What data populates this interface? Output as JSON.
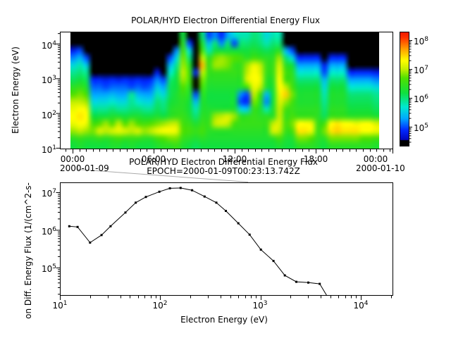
{
  "top_plot": {
    "title": "POLAR/HYD  Electron Differential Energy Flux",
    "ylabel": "Electron Energy (eV)",
    "yticks": [
      {
        "base": "10",
        "exp": "4"
      },
      {
        "base": "10",
        "exp": "3"
      },
      {
        "base": "10",
        "exp": "2"
      },
      {
        "base": "10",
        "exp": "1"
      }
    ],
    "xticks": [
      "00:00",
      "06:00",
      "12:00",
      "18:00",
      "00:00"
    ],
    "date_left": "2000-01-09",
    "date_right": "2000-01-10"
  },
  "colorbar": {
    "ticks": [
      {
        "base": "10",
        "exp": "8"
      },
      {
        "base": "10",
        "exp": "7"
      },
      {
        "base": "10",
        "exp": "6"
      },
      {
        "base": "10",
        "exp": "5"
      }
    ]
  },
  "bottom_plot": {
    "title_line1": "POLAR/HYD  Electron Differential Energy Flux",
    "title_line2": "EPOCH=2000-01-09T00:23:13.742Z",
    "xlabel": "Electron Energy (eV)",
    "ylabel": "on Diff. Energy Flux (1/(cm^2-s-",
    "yticks": [
      {
        "base": "10",
        "exp": "7"
      },
      {
        "base": "10",
        "exp": "6"
      },
      {
        "base": "10",
        "exp": "5"
      }
    ],
    "xticks": [
      {
        "base": "10",
        "exp": "1"
      },
      {
        "base": "10",
        "exp": "2"
      },
      {
        "base": "10",
        "exp": "3"
      },
      {
        "base": "10",
        "exp": "4"
      }
    ]
  },
  "colors": {
    "frame": "#000000",
    "connector": "#aaaaaa",
    "no_data": "#ffffff",
    "below_threshold": "#000000",
    "scale_stops": [
      [
        0.0,
        "#0000b0"
      ],
      [
        0.1,
        "#0028ff"
      ],
      [
        0.2,
        "#00a8ff"
      ],
      [
        0.3,
        "#00e8d0"
      ],
      [
        0.42,
        "#10e040"
      ],
      [
        0.55,
        "#50e000"
      ],
      [
        0.63,
        "#c8f000"
      ],
      [
        0.7,
        "#ffff00"
      ],
      [
        0.8,
        "#ffa000"
      ],
      [
        0.9,
        "#ff3000"
      ],
      [
        1.0,
        "#d80000"
      ]
    ]
  },
  "chart_data": [
    {
      "type": "heatmap",
      "title": "POLAR/HYD  Electron Differential Energy Flux",
      "x_axis": "time UT on 2000-01-09, 00:00 to 24:00, data from ~00:00 to ~22:40",
      "x_bins": 48,
      "y_axis": "Electron Energy (eV), log scale",
      "y_range_ev": [
        10,
        22000
      ],
      "y_bins": 16,
      "value": "log10 of differential energy flux; 0 means below scale (black)",
      "color_range_log10": [
        4.5,
        8.5
      ],
      "orientation": "columns array: one array per time bin, 16 values top(high energy) to bottom(low energy)",
      "values_log10_flux_columns": [
        [
          0,
          0,
          4.8,
          5.2,
          5.6,
          5.9,
          6.1,
          6.4,
          6.7,
          7.0,
          7.2,
          7.3,
          7.2,
          6.9,
          6.4,
          6.2
        ],
        [
          0,
          0,
          5.0,
          5.4,
          5.8,
          6.0,
          6.2,
          6.5,
          6.8,
          7.0,
          7.3,
          7.4,
          7.3,
          7.0,
          6.5,
          6.3
        ],
        [
          0,
          0,
          0,
          5.0,
          5.5,
          5.9,
          6.1,
          6.3,
          6.6,
          6.9,
          7.2,
          7.3,
          7.2,
          6.9,
          6.4,
          6.2
        ],
        [
          0,
          0,
          0,
          0,
          0,
          0,
          4.9,
          5.1,
          5.3,
          5.6,
          5.9,
          6.2,
          6.6,
          6.8,
          6.4,
          6.2
        ],
        [
          0,
          0,
          0,
          0,
          0,
          0,
          4.9,
          5.1,
          5.3,
          5.6,
          5.9,
          6.2,
          6.7,
          7.1,
          6.5,
          6.2
        ],
        [
          0,
          0,
          0,
          0,
          0,
          0,
          4.8,
          5.0,
          5.3,
          5.6,
          5.9,
          6.2,
          6.9,
          7.0,
          6.4,
          6.2
        ],
        [
          0,
          0,
          0,
          0,
          0,
          0,
          4.9,
          5.1,
          5.4,
          5.7,
          6.0,
          6.3,
          6.7,
          7.1,
          6.5,
          6.3
        ],
        [
          0,
          0,
          0,
          0,
          0,
          0,
          4.8,
          5.1,
          5.3,
          5.6,
          5.9,
          6.3,
          7.0,
          7.2,
          6.6,
          6.3
        ],
        [
          0,
          0,
          0,
          0,
          0,
          0,
          4.9,
          5.1,
          5.3,
          5.6,
          5.9,
          6.2,
          6.7,
          7.1,
          6.5,
          6.2
        ],
        [
          0,
          0,
          0,
          0,
          0,
          0,
          4.8,
          5.0,
          5.9,
          5.9,
          6.0,
          6.3,
          6.9,
          7.0,
          6.5,
          6.3
        ],
        [
          0,
          0,
          0,
          0,
          0,
          0,
          4.9,
          5.1,
          5.4,
          5.7,
          6.0,
          6.3,
          6.7,
          7.1,
          6.5,
          6.2
        ],
        [
          0,
          0,
          0,
          0,
          0,
          0,
          4.8,
          5.0,
          5.3,
          5.6,
          5.9,
          6.2,
          6.6,
          6.9,
          6.4,
          6.2
        ],
        [
          0,
          0,
          0,
          0,
          0,
          0,
          4.9,
          5.1,
          5.3,
          5.6,
          5.9,
          6.2,
          6.7,
          7.0,
          6.4,
          6.2
        ],
        [
          0,
          0,
          0,
          0,
          0,
          4.8,
          5.2,
          5.5,
          5.8,
          6.0,
          6.1,
          6.3,
          6.8,
          7.2,
          6.6,
          6.3
        ],
        [
          0,
          0,
          0,
          0,
          0,
          0,
          5.0,
          5.3,
          5.6,
          5.9,
          6.0,
          6.2,
          6.9,
          7.3,
          6.7,
          6.4
        ],
        [
          0,
          0,
          0,
          5.0,
          5.4,
          5.7,
          6.0,
          6.1,
          6.1,
          6.2,
          6.3,
          6.4,
          7.0,
          7.3,
          6.8,
          6.4
        ],
        [
          0,
          0,
          5.2,
          5.6,
          5.9,
          6.1,
          6.2,
          6.2,
          6.3,
          6.3,
          6.4,
          6.5,
          7.0,
          7.2,
          6.8,
          6.5
        ],
        [
          6.2,
          6.4,
          6.6,
          6.8,
          6.9,
          7.0,
          6.9,
          6.7,
          6.5,
          6.4,
          6.4,
          6.5,
          6.6,
          6.7,
          6.5,
          6.3
        ],
        [
          0,
          5.0,
          5.6,
          6.0,
          6.4,
          6.6,
          6.6,
          6.4,
          6.3,
          6.2,
          6.2,
          6.3,
          6.5,
          6.6,
          6.4,
          6.2
        ],
        [
          0,
          0,
          0,
          0,
          0,
          4.8,
          0,
          0,
          5.0,
          5.4,
          5.8,
          6.0,
          6.3,
          6.5,
          6.3,
          6.1
        ],
        [
          6.0,
          6.3,
          6.6,
          7.0,
          7.6,
          7.0,
          6.8,
          6.6,
          6.4,
          6.3,
          6.3,
          6.4,
          6.5,
          6.6,
          6.4,
          6.2
        ],
        [
          5.0,
          5.4,
          5.8,
          6.4,
          6.5,
          6.5,
          6.4,
          6.3,
          6.2,
          6.2,
          6.3,
          6.4,
          6.5,
          6.4,
          6.3,
          6.2
        ],
        [
          5.2,
          6.0,
          6.2,
          6.8,
          6.9,
          6.5,
          6.4,
          6.3,
          6.2,
          6.2,
          6.3,
          6.9,
          7.0,
          6.4,
          6.3,
          6.2
        ],
        [
          4.9,
          5.2,
          6.2,
          6.9,
          6.9,
          6.5,
          6.4,
          6.3,
          6.2,
          6.2,
          6.3,
          7.0,
          7.1,
          6.4,
          6.3,
          6.2
        ],
        [
          5.3,
          6.0,
          6.2,
          6.8,
          6.8,
          6.5,
          6.4,
          6.3,
          6.2,
          6.2,
          6.3,
          7.1,
          7.0,
          6.4,
          6.3,
          6.2
        ],
        [
          5.6,
          5.0,
          6.2,
          6.7,
          6.5,
          6.5,
          6.4,
          6.3,
          6.2,
          6.2,
          6.3,
          6.9,
          6.6,
          6.4,
          6.3,
          6.2
        ],
        [
          5.8,
          6.0,
          6.2,
          6.6,
          6.5,
          6.5,
          6.4,
          6.3,
          5.2,
          5.0,
          5.6,
          6.4,
          6.5,
          6.4,
          6.3,
          6.2
        ],
        [
          5.8,
          6.0,
          6.2,
          6.4,
          6.9,
          7.0,
          7.1,
          6.6,
          5.0,
          4.9,
          5.5,
          6.4,
          6.5,
          6.4,
          6.3,
          6.2
        ],
        [
          6.0,
          6.1,
          6.3,
          6.6,
          7.2,
          7.3,
          7.3,
          7.2,
          7.0,
          6.8,
          6.5,
          6.5,
          6.5,
          6.4,
          6.3,
          6.2
        ],
        [
          5.9,
          6.0,
          6.2,
          6.5,
          7.0,
          7.1,
          7.2,
          7.0,
          6.6,
          6.4,
          6.3,
          6.4,
          6.5,
          6.4,
          6.3,
          6.2
        ],
        [
          5.6,
          5.8,
          6.1,
          6.4,
          6.5,
          6.5,
          6.4,
          6.3,
          5.4,
          5.2,
          5.8,
          6.4,
          6.5,
          6.4,
          6.3,
          6.2
        ],
        [
          5.8,
          6.0,
          6.2,
          6.4,
          6.5,
          6.5,
          6.4,
          6.3,
          6.2,
          6.2,
          6.3,
          6.4,
          7.0,
          7.1,
          6.4,
          6.2
        ],
        [
          5.8,
          6.0,
          6.4,
          6.9,
          7.1,
          7.2,
          7.3,
          7.3,
          7.2,
          7.1,
          7.0,
          7.0,
          7.1,
          7.0,
          6.6,
          6.3
        ],
        [
          0,
          0,
          5.4,
          6.0,
          6.4,
          6.6,
          6.6,
          7.0,
          7.5,
          6.9,
          6.6,
          6.5,
          6.6,
          6.5,
          6.3,
          6.2
        ],
        [
          0,
          0,
          5.0,
          5.6,
          6.2,
          6.4,
          6.5,
          6.6,
          6.8,
          6.6,
          6.5,
          6.6,
          6.8,
          6.6,
          6.3,
          6.2
        ],
        [
          0,
          0,
          0,
          4.9,
          5.3,
          5.7,
          6.0,
          6.2,
          6.3,
          6.3,
          6.4,
          6.5,
          7.3,
          7.4,
          6.8,
          6.4
        ],
        [
          0,
          0,
          0,
          4.9,
          5.3,
          5.7,
          6.0,
          6.2,
          6.3,
          6.3,
          6.4,
          6.5,
          7.3,
          7.4,
          6.8,
          6.4
        ],
        [
          0,
          0,
          0,
          4.9,
          5.3,
          5.7,
          6.0,
          6.2,
          6.3,
          6.3,
          6.4,
          6.5,
          7.2,
          7.2,
          6.7,
          6.4
        ],
        [
          0,
          0,
          0,
          4.9,
          5.3,
          5.7,
          6.0,
          6.2,
          6.3,
          6.3,
          6.4,
          6.4,
          6.5,
          6.5,
          6.4,
          6.3
        ],
        [
          0,
          0,
          0,
          0,
          4.8,
          5.0,
          5.4,
          5.6,
          5.8,
          5.9,
          6.0,
          6.1,
          6.6,
          6.8,
          6.4,
          6.2
        ],
        [
          0,
          0,
          0,
          4.9,
          5.3,
          5.7,
          6.0,
          6.2,
          6.3,
          6.3,
          6.4,
          6.5,
          7.3,
          7.4,
          6.8,
          6.4
        ],
        [
          0,
          0,
          0,
          4.9,
          5.3,
          5.7,
          6.0,
          6.2,
          6.3,
          6.3,
          6.4,
          6.5,
          7.4,
          7.5,
          6.8,
          6.4
        ],
        [
          0,
          0,
          0,
          4.9,
          5.3,
          5.7,
          6.0,
          6.2,
          6.3,
          6.3,
          6.4,
          6.5,
          7.3,
          7.4,
          6.8,
          6.4
        ],
        [
          0,
          0,
          0,
          0,
          0,
          4.9,
          5.3,
          5.7,
          6.0,
          6.1,
          6.2,
          6.4,
          7.3,
          7.4,
          6.8,
          6.4
        ],
        [
          0,
          0,
          0,
          0,
          0,
          4.9,
          5.3,
          5.7,
          6.0,
          6.1,
          6.2,
          6.4,
          7.2,
          7.4,
          6.8,
          6.4
        ],
        [
          0,
          0,
          0,
          0,
          0,
          4.9,
          5.3,
          5.7,
          6.0,
          6.1,
          6.2,
          6.4,
          7.3,
          7.3,
          6.7,
          6.4
        ],
        [
          0,
          0,
          0,
          0,
          0,
          4.9,
          5.3,
          5.7,
          6.0,
          6.1,
          6.2,
          6.4,
          7.3,
          7.3,
          6.7,
          6.4
        ],
        [
          0,
          0,
          0,
          0,
          0,
          4.8,
          5.2,
          5.6,
          5.9,
          6.0,
          6.1,
          6.3,
          7.1,
          7.2,
          6.6,
          6.3
        ]
      ]
    },
    {
      "type": "line",
      "title": "POLAR/HYD  Electron Differential Energy Flux  EPOCH=2000-01-09T00:23:13.742Z",
      "xlabel": "Electron Energy (eV)",
      "ylabel": "on Diff. Energy Flux (1/(cm^2-s-",
      "xscale": "log",
      "yscale": "log",
      "xlim": [
        10,
        21000
      ],
      "ylim": [
        18000,
        19000000
      ],
      "marker": "square",
      "x": [
        12.4,
        15,
        20,
        26,
        32,
        45,
        57,
        72,
        98,
        125,
        160,
        208,
        277,
        363,
        452,
        602,
        780,
        1010,
        1350,
        1750,
        2280,
        3000,
        3900
      ],
      "y": [
        1250000,
        1200000,
        460000,
        730000,
        1250000,
        2900000,
        5300000,
        7500000,
        10300000,
        12700000,
        13000000,
        11300000,
        7700000,
        5300000,
        3200000,
        1500000,
        750000,
        300000,
        150000,
        62000,
        42000,
        40000,
        37000
      ],
      "clip_exit": {
        "x": 4600,
        "y": 15500
      }
    }
  ]
}
